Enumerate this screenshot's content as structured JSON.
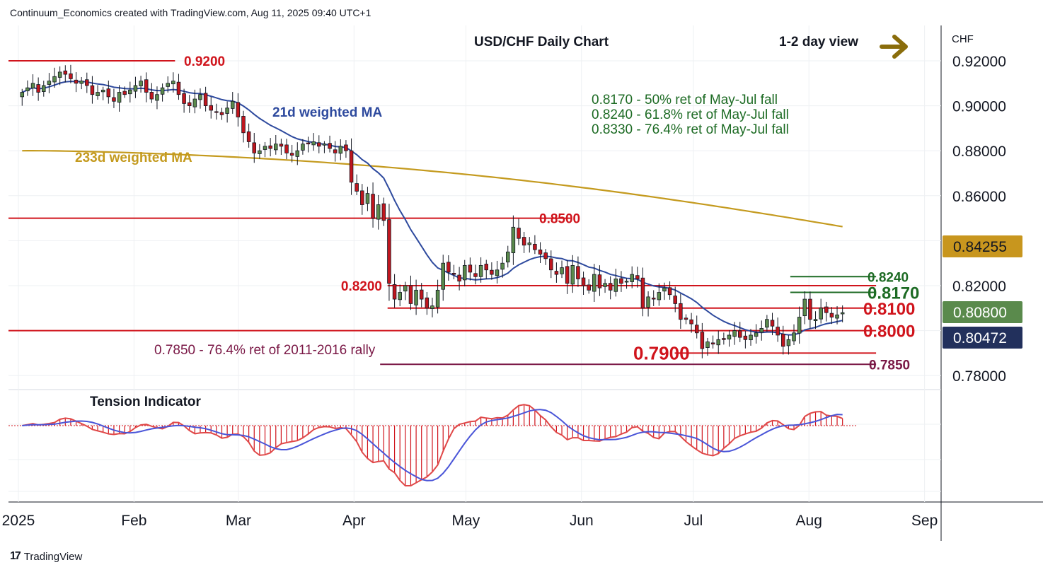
{
  "header": {
    "attribution": "Continuum_Economics created with TradingView.com, Aug 11, 2025 09:40 UTC+1"
  },
  "footer": {
    "brand": "TradingView",
    "logo_icon": "tradingview-logo-icon"
  },
  "colors": {
    "up": "#5a8a4c",
    "down": "#c0161e",
    "ma21": "#2e4a9e",
    "ma233": "#c49a1e",
    "red_level": "#d0141c",
    "green_level": "#1d6b24",
    "purple_level": "#7a1846",
    "arrow": "#8a6d0b",
    "badge_orange": "#c8961e",
    "badge_green": "#5a8a4c",
    "badge_navy": "#22305c"
  },
  "chart_data": {
    "type": "candlestick",
    "title": "USD/CHF Daily Chart",
    "view_label": "1-2 day view",
    "view_icon": "right-arrow-icon",
    "currency_label": "CHF",
    "x_labels": [
      "2025",
      "Feb",
      "Mar",
      "Apr",
      "May",
      "Jun",
      "Jul",
      "Aug",
      "Sep"
    ],
    "x_label_dates": [
      "2025-01-01",
      "2025-02-01",
      "2025-03-01",
      "2025-04-01",
      "2025-05-01",
      "2025-06-01",
      "2025-07-01",
      "2025-08-01",
      "2025-09-01"
    ],
    "y_ticks": [
      "0.92000",
      "0.90000",
      "0.88000",
      "0.86000",
      "0.82000",
      "0.78000"
    ],
    "y_tick_values": [
      0.92,
      0.9,
      0.88,
      0.86,
      0.82,
      0.78
    ],
    "ylim": [
      0.775,
      0.934
    ],
    "grid": true,
    "price_badges": [
      {
        "label": "0.84255",
        "value": 0.84255,
        "color": "#c8961e"
      },
      {
        "label": "0.80800",
        "value": 0.808,
        "color": "#5a8a4c"
      },
      {
        "label": "0.80472",
        "value": 0.80472,
        "color": "#22305c"
      }
    ],
    "levels": [
      {
        "value": 0.92,
        "label": "0.9200",
        "color": "red",
        "start": "2025-01-01",
        "end": "2025-02-12"
      },
      {
        "value": 0.85,
        "label": "0.8500",
        "color": "red",
        "start": "2025-01-01",
        "end": "2025-05-29"
      },
      {
        "value": 0.82,
        "label": "0.8200",
        "color": "red",
        "start": "2025-04-10",
        "end": "2025-08-19"
      },
      {
        "value": 0.81,
        "label": "0.8100",
        "color": "red",
        "start": "2025-04-10",
        "end": "2025-08-19"
      },
      {
        "value": 0.8,
        "label": "0.8000",
        "color": "red",
        "start": "2025-01-01",
        "end": "2025-08-19"
      },
      {
        "value": 0.79,
        "label": "0.7900",
        "color": "red",
        "start": "2025-06-26",
        "end": "2025-08-19"
      },
      {
        "value": 0.785,
        "label": "0.7850",
        "color": "purple",
        "start": "2025-04-08",
        "end": "2025-08-19"
      },
      {
        "value": 0.824,
        "label": "0.8240",
        "color": "green",
        "start": "2025-07-27",
        "end": "2025-08-19"
      },
      {
        "value": 0.817,
        "label": "0.8170",
        "color": "green",
        "start": "2025-07-27",
        "end": "2025-08-19"
      }
    ],
    "annotations": {
      "ma21": "21d weighted MA",
      "ma233": "233d weighted MA",
      "retracements": [
        "0.8170 - 50% ret of May-Jul fall",
        "0.8240 - 61.8% ret of May-Jul fall",
        "0.8330 - 76.4% ret of May-Jul fall"
      ],
      "long_term": "0.7850 - 76.4% ret of 2011-2016 rally",
      "indicator": "Tension Indicator"
    },
    "closes": [
      0.906,
      0.908,
      0.91,
      0.906,
      0.909,
      0.911,
      0.913,
      0.915,
      0.914,
      0.912,
      0.91,
      0.911,
      0.909,
      0.905,
      0.906,
      0.907,
      0.904,
      0.902,
      0.906,
      0.905,
      0.907,
      0.909,
      0.911,
      0.906,
      0.903,
      0.905,
      0.908,
      0.91,
      0.911,
      0.905,
      0.901,
      0.9,
      0.903,
      0.905,
      0.9,
      0.898,
      0.897,
      0.896,
      0.899,
      0.902,
      0.895,
      0.888,
      0.884,
      0.879,
      0.88,
      0.882,
      0.881,
      0.883,
      0.882,
      0.879,
      0.878,
      0.88,
      0.883,
      0.883,
      0.884,
      0.882,
      0.883,
      0.881,
      0.879,
      0.882,
      0.88,
      0.866,
      0.862,
      0.856,
      0.861,
      0.85,
      0.856,
      0.849,
      0.821,
      0.814,
      0.817,
      0.82,
      0.812,
      0.818,
      0.814,
      0.81,
      0.811,
      0.818,
      0.83,
      0.826,
      0.825,
      0.822,
      0.829,
      0.826,
      0.824,
      0.829,
      0.827,
      0.825,
      0.827,
      0.83,
      0.835,
      0.846,
      0.841,
      0.838,
      0.839,
      0.836,
      0.834,
      0.832,
      0.827,
      0.825,
      0.828,
      0.821,
      0.829,
      0.823,
      0.82,
      0.818,
      0.825,
      0.819,
      0.821,
      0.818,
      0.823,
      0.821,
      0.822,
      0.825,
      0.823,
      0.81,
      0.815,
      0.814,
      0.817,
      0.819,
      0.816,
      0.812,
      0.805,
      0.805,
      0.803,
      0.799,
      0.792,
      0.795,
      0.794,
      0.796,
      0.796,
      0.798,
      0.8,
      0.797,
      0.796,
      0.798,
      0.799,
      0.801,
      0.805,
      0.802,
      0.798,
      0.793,
      0.796,
      0.799,
      0.806,
      0.814,
      0.805,
      0.805,
      0.81,
      0.808,
      0.806,
      0.807,
      0.808
    ]
  }
}
